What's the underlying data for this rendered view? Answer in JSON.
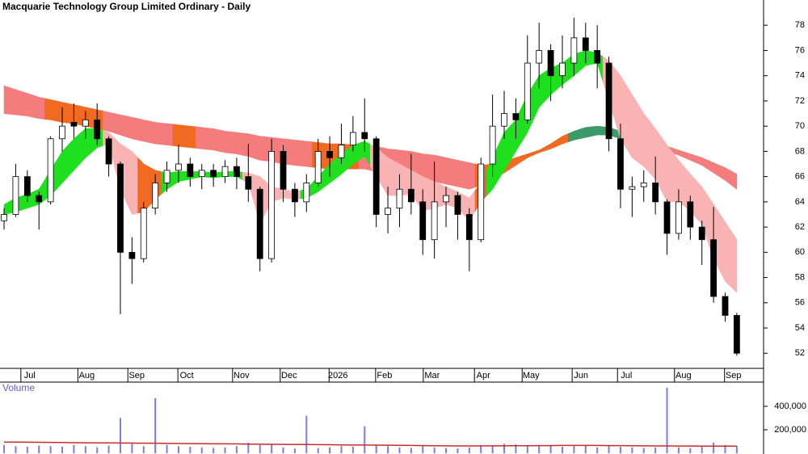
{
  "chart_data": {
    "type": "candlestick",
    "title": "Macquarie Technology Group Limited Ordinary - Daily",
    "xlim": [
      -0.35,
      65.3
    ],
    "xticks": [
      {
        "value": 2,
        "label": "Jul"
      },
      {
        "value": 6.9,
        "label": "Aug"
      },
      {
        "value": 11.2,
        "label": "Sep"
      },
      {
        "value": 15.5,
        "label": "Oct"
      },
      {
        "value": 20.2,
        "label": "Nov"
      },
      {
        "value": 24.3,
        "label": "Dec"
      },
      {
        "value": 28.5,
        "label": "2026"
      },
      {
        "value": 32.5,
        "label": "Feb"
      },
      {
        "value": 36.6,
        "label": "Mar"
      },
      {
        "value": 41,
        "label": "Apr"
      },
      {
        "value": 45.1,
        "label": "May"
      },
      {
        "value": 49.4,
        "label": "Jun"
      },
      {
        "value": 53.3,
        "label": "Jul"
      },
      {
        "value": 58.2,
        "label": "Aug"
      },
      {
        "value": 62.5,
        "label": "Sep"
      }
    ],
    "ylim": [
      50.8,
      80
    ],
    "yticks": [
      52,
      54,
      56,
      58,
      60,
      62,
      64,
      66,
      68,
      70,
      72,
      74,
      76,
      78
    ],
    "up_color": "#ffffff",
    "down_color": "#000000",
    "open": [
      62.5,
      63,
      66,
      64.5,
      64,
      69,
      70.3,
      70,
      70.5,
      69,
      67,
      60,
      59.5,
      63.5,
      65.5,
      66.5,
      67,
      66,
      66.5,
      66,
      66.8,
      66,
      65,
      59.5,
      68,
      65,
      64,
      65.5,
      68,
      67.5,
      68.5,
      69.5,
      69,
      63,
      63.5,
      65,
      64,
      61,
      64,
      64.5,
      63,
      61,
      67,
      70,
      71,
      70.5,
      75,
      76,
      74,
      75,
      77,
      76,
      75,
      69,
      65,
      65.2,
      65.5,
      64,
      61.5,
      64,
      62,
      61,
      56.5,
      55
    ],
    "high": [
      63.5,
      67,
      66.5,
      64.8,
      69.2,
      71.5,
      71.8,
      71.2,
      71.8,
      69.2,
      67.2,
      61.2,
      64,
      66.2,
      67.2,
      68.5,
      67.5,
      67,
      67,
      67.3,
      67.5,
      68.6,
      65.2,
      69,
      68.5,
      65.5,
      66.2,
      69,
      69.2,
      70.2,
      70.8,
      72.2,
      69.2,
      65.2,
      66.2,
      67.8,
      65,
      67.2,
      65.2,
      64.8,
      63.5,
      67.5,
      72.5,
      72.8,
      72.2,
      77.2,
      78.2,
      76.5,
      77.2,
      78.6,
      78.2,
      78,
      75.5,
      70.2,
      66,
      66.5,
      67.6,
      64.2,
      65,
      64.5,
      62.5,
      63.6,
      56.8,
      55.2
    ],
    "low": [
      61.8,
      62.8,
      64,
      61.8,
      63.8,
      68,
      69,
      69,
      68.5,
      66,
      55.1,
      57.5,
      59.2,
      63,
      64.8,
      65.5,
      65.2,
      65,
      65.2,
      65.5,
      65,
      64,
      58.5,
      59.2,
      64,
      62.8,
      63.2,
      65.2,
      66,
      67,
      68,
      68,
      62,
      61.5,
      62,
      63,
      59.8,
      59.5,
      62,
      61,
      58.5,
      60.8,
      66,
      69,
      69,
      70.2,
      73,
      72,
      73,
      74,
      75,
      73,
      68,
      63.5,
      62.8,
      64,
      63,
      59.8,
      61,
      61,
      59,
      56,
      54.5,
      51.8
    ],
    "close": [
      63,
      66,
      64.5,
      64,
      69,
      70,
      70,
      70.5,
      69,
      67,
      60,
      59.5,
      63.5,
      65.5,
      66.5,
      67,
      66,
      66.5,
      66,
      66.8,
      66,
      65,
      59.5,
      68,
      65,
      64,
      65.5,
      68,
      67.5,
      68.5,
      69.5,
      69,
      63,
      63.5,
      65,
      64,
      61,
      64,
      64.5,
      63,
      61,
      67,
      70,
      71,
      70.5,
      75,
      76,
      74,
      75,
      77,
      76,
      75,
      69,
      65,
      65.2,
      65.5,
      64,
      61.5,
      64,
      62,
      61,
      56.5,
      55,
      52
    ],
    "ribbons": [
      {
        "upper": [
          73.2,
          72.9,
          72.6,
          72.3,
          72.1,
          71.9,
          71.7,
          71.5,
          71.3,
          71.1,
          70.9,
          70.7,
          70.5,
          70.3,
          70.2,
          70.1,
          70.0,
          69.9,
          69.8,
          69.6,
          69.5,
          69.4,
          69.2,
          69.1,
          69.0,
          68.9,
          68.8,
          68.7,
          68.6,
          68.6,
          68.5,
          68.5,
          68.4,
          68.2,
          68.1,
          68.0,
          67.8,
          67.7,
          67.5,
          67.3,
          67.1,
          66.9,
          67.0,
          67.2,
          67.5,
          67.8,
          68.1,
          68.6,
          69.2,
          69.6,
          69.9,
          70.0,
          69.9,
          69.6,
          69.3,
          69.0,
          68.7,
          68.4,
          68.1,
          67.8,
          67.5,
          67.1,
          66.7,
          66.2
        ],
        "lower": [
          71.0,
          70.9,
          70.8,
          70.6,
          70.5,
          70.3,
          70.2,
          70.0,
          69.8,
          69.6,
          69.3,
          69.0,
          68.8,
          68.6,
          68.5,
          68.4,
          68.3,
          68.2,
          68.1,
          67.9,
          67.8,
          67.6,
          67.3,
          67.2,
          67.0,
          66.9,
          66.8,
          66.7,
          66.6,
          66.6,
          66.6,
          66.6,
          66.4,
          66.2,
          66.0,
          65.9,
          65.7,
          65.6,
          65.4,
          65.2,
          65.0,
          65.3,
          65.8,
          66.3,
          66.9,
          67.5,
          67.9,
          68.2,
          68.6,
          68.9,
          69.1,
          69.3,
          69.3,
          69.0,
          68.9,
          68.7,
          68.4,
          68.0,
          67.7,
          67.3,
          66.9,
          66.3,
          65.7,
          65.0
        ],
        "colors": [
          "#f47c7c",
          "#f47c7c",
          "#f47c7c",
          "#f47c7c",
          "#f26a21",
          "#f26a21",
          "#f26a21",
          "#f26a21",
          "#f26a21",
          "#f47c7c",
          "#f47c7c",
          "#f47c7c",
          "#f47c7c",
          "#f47c7c",
          "#f47c7c",
          "#f26a21",
          "#f26a21",
          "#f47c7c",
          "#f47c7c",
          "#f47c7c",
          "#f47c7c",
          "#f47c7c",
          "#f47c7c",
          "#f47c7c",
          "#f47c7c",
          "#f47c7c",
          "#f47c7c",
          "#f26a21",
          "#f26a21",
          "#f26a21",
          "#f26a21",
          "#f47c7c",
          "#f47c7c",
          "#f47c7c",
          "#f47c7c",
          "#f47c7c",
          "#f47c7c",
          "#f47c7c",
          "#f47c7c",
          "#f47c7c",
          "#f47c7c",
          "#f26a21",
          "#f26a21",
          "#f26a21",
          "#f26a21",
          "#f26a21",
          "#f26a21",
          "#f26a21",
          "#f26a21",
          "#3a9a68",
          "#3a9a68",
          "#3a9a68",
          "#3a9a68",
          "#3a9a68",
          "#f47c7c",
          "#f47c7c",
          "#f47c7c",
          "#f47c7c",
          "#f47c7c",
          "#f47c7c",
          "#f47c7c",
          "#f47c7c",
          "#f47c7c",
          "#f47c7c"
        ]
      },
      {
        "upper": [
          63.8,
          64.3,
          64.6,
          65,
          66.5,
          68,
          69,
          69.8,
          69.8,
          69.5,
          68.6,
          68,
          67,
          66.5,
          66.3,
          66.4,
          66.4,
          66.4,
          66.3,
          66.4,
          66.4,
          66.3,
          66,
          65.2,
          65,
          64.8,
          65,
          66,
          67,
          67.8,
          68.5,
          68.8,
          68.3,
          67.5,
          67,
          66.5,
          66,
          65.6,
          65.2,
          64.8,
          64.3,
          65.5,
          67.5,
          69.5,
          70.5,
          72.5,
          74,
          74.6,
          75,
          75.7,
          76,
          75.8,
          75.2,
          74,
          72.5,
          71,
          69.8,
          68.5,
          67.3,
          66.2,
          65.2,
          63.8,
          62.4,
          61
        ],
        "lower": [
          63,
          63.2,
          63.5,
          63.8,
          64.5,
          65.5,
          66.5,
          67.5,
          68.3,
          68.6,
          65,
          63,
          63.2,
          64.2,
          65,
          65.6,
          65.8,
          66,
          65.9,
          66,
          66,
          65.5,
          62.3,
          64,
          64.3,
          64.2,
          64.3,
          64.8,
          65.5,
          66.2,
          67,
          67.6,
          66,
          64.5,
          64.5,
          64.6,
          63.3,
          63.5,
          63.8,
          63.5,
          62.5,
          64,
          65,
          66.5,
          68,
          69.5,
          71.5,
          72.5,
          73.3,
          74,
          74.8,
          75,
          72,
          69,
          67.5,
          66.8,
          65.8,
          64,
          64,
          63.3,
          62.2,
          59.5,
          57.7,
          56.8
        ],
        "colors": [
          "#1fe01f",
          "#1fe01f",
          "#1fe01f",
          "#1fe01f",
          "#1fe01f",
          "#1fe01f",
          "#1fe01f",
          "#1fe01f",
          "#1fe01f",
          "#f9b3b3",
          "#f9b3b3",
          "#f9b3b3",
          "#f26a21",
          "#f26a21",
          "#1fe01f",
          "#1fe01f",
          "#1fe01f",
          "#1fe01f",
          "#1fe01f",
          "#1fe01f",
          "#1fe01f",
          "#f9b3b3",
          "#f9b3b3",
          "#f9b3b3",
          "#f9b3b3",
          "#f9b3b3",
          "#1fe01f",
          "#1fe01f",
          "#1fe01f",
          "#1fe01f",
          "#1fe01f",
          "#1fe01f",
          "#f9b3b3",
          "#f9b3b3",
          "#f9b3b3",
          "#f9b3b3",
          "#f9b3b3",
          "#f9b3b3",
          "#f9b3b3",
          "#f9b3b3",
          "#f9b3b3",
          "#f26a21",
          "#1fe01f",
          "#1fe01f",
          "#1fe01f",
          "#1fe01f",
          "#1fe01f",
          "#1fe01f",
          "#1fe01f",
          "#1fe01f",
          "#1fe01f",
          "#1fe01f",
          "#f9b3b3",
          "#f9b3b3",
          "#f9b3b3",
          "#f9b3b3",
          "#f9b3b3",
          "#f9b3b3",
          "#f9b3b3",
          "#f9b3b3",
          "#f9b3b3",
          "#f9b3b3",
          "#f9b3b3",
          "#f9b3b3"
        ]
      }
    ],
    "volume": {
      "title": "Volume",
      "color": "#7b7bea",
      "average_color": "#cc2a2a",
      "ylim": [
        0,
        607000
      ],
      "yticks": [
        {
          "value": 200000,
          "label": "200,000"
        },
        {
          "value": 400000,
          "label": "400,000"
        }
      ],
      "values": [
        70000,
        60000,
        55000,
        65000,
        60000,
        55000,
        70000,
        60000,
        50000,
        65000,
        300000,
        80000,
        60000,
        470000,
        70000,
        60000,
        55000,
        50000,
        45000,
        50000,
        60000,
        90000,
        70000,
        80000,
        50000,
        40000,
        320000,
        45000,
        50000,
        60000,
        55000,
        230000,
        70000,
        60000,
        50000,
        45000,
        60000,
        50000,
        45000,
        40000,
        50000,
        70000,
        60000,
        80000,
        75000,
        60000,
        65000,
        70000,
        55000,
        60000,
        65000,
        50000,
        60000,
        55000,
        50000,
        45000,
        50000,
        560000,
        50000,
        45000,
        55000,
        90000,
        70000,
        60000
      ],
      "average": [
        95000,
        95000,
        94000,
        93000,
        92000,
        91000,
        90000,
        89000,
        88000,
        88000,
        87000,
        86000,
        85000,
        85000,
        84000,
        83000,
        82000,
        81000,
        80000,
        80000,
        79000,
        78000,
        77000,
        76000,
        75000,
        74000,
        74000,
        73000,
        72000,
        71000,
        70000,
        70000,
        69000,
        68000,
        67000,
        66000,
        65000,
        64000,
        63000,
        62000,
        62000,
        62000,
        63000,
        63000,
        64000,
        64000,
        65000,
        65000,
        66000,
        66000,
        66000,
        66000,
        65000,
        65000,
        64000,
        63000,
        62000,
        62000,
        61000,
        61000,
        60000,
        60000,
        60000,
        60000
      ]
    }
  }
}
